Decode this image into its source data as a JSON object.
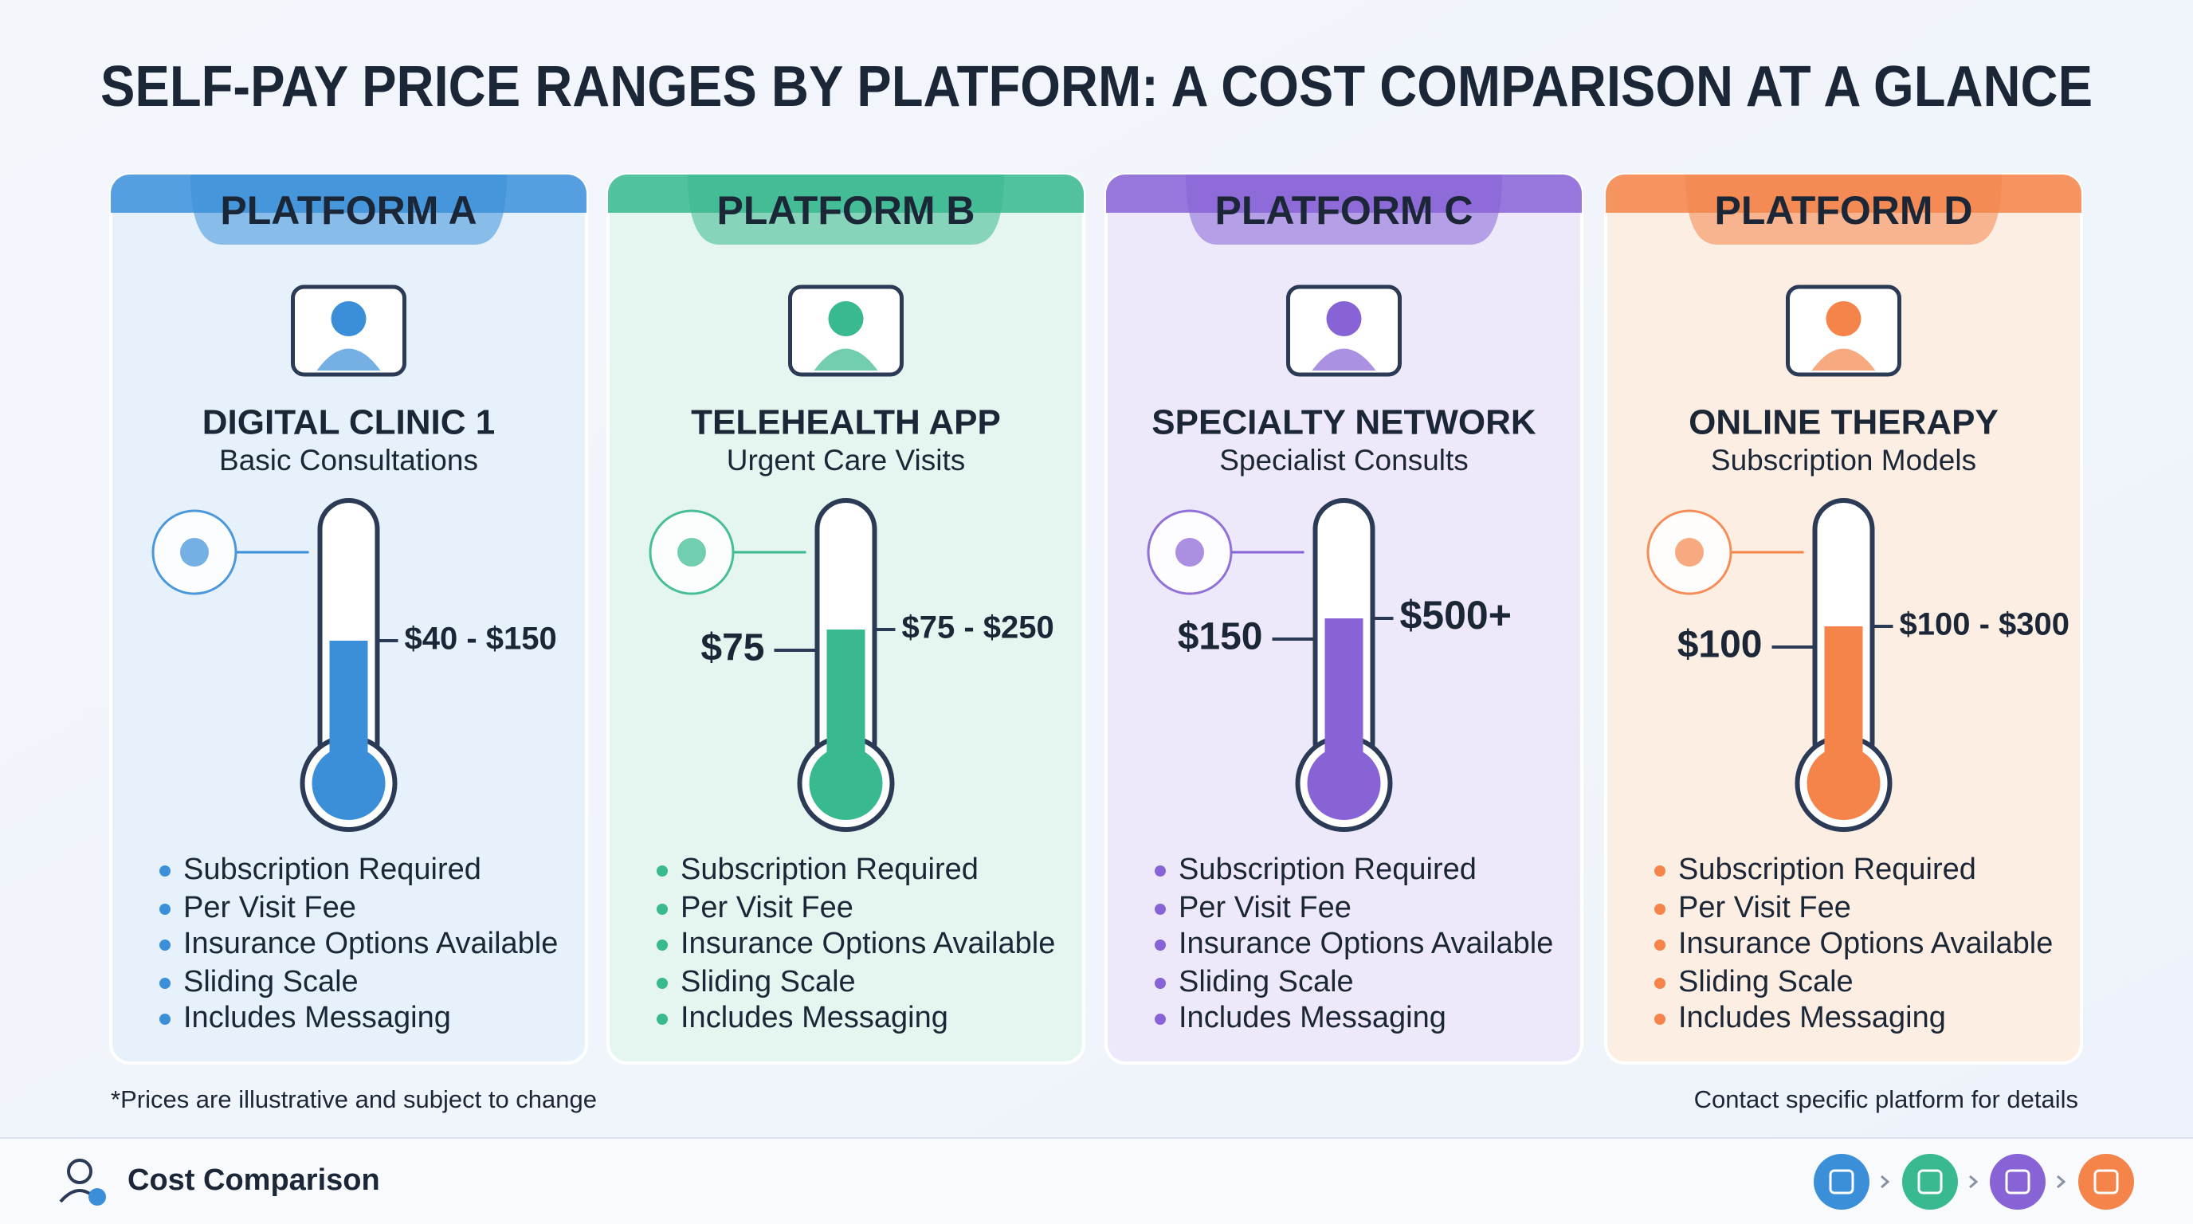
{
  "header": {
    "title": "SELF-PAY PRICE RANGES BY PLATFORM: A COST COMPARISON AT A GLANCE"
  },
  "cards": [
    {
      "platform": "PLATFORM A",
      "name": "DIGITAL CLINIC 1",
      "subtitle": "Basic Consultations",
      "price_range": "$40 - $150",
      "color": "#3b8fd9",
      "background": "#e6f1fc",
      "features": [
        "Subscription Required",
        "Per Visit Fee",
        "Insurance Options Available",
        "Sliding Scale",
        "Includes Messaging"
      ]
    },
    {
      "platform": "PLATFORM B",
      "name": "TELEHEALTH APP",
      "subtitle": "Urgent Care Visits",
      "price_low": "$75",
      "price_range": "$75 - $250",
      "color": "#38b98f",
      "background": "#e5f5ef",
      "features": [
        "Subscription Required",
        "Per Visit Fee",
        "Insurance Options Available",
        "Sliding Scale",
        "Includes Messaging"
      ]
    },
    {
      "platform": "PLATFORM C",
      "name": "SPECIALTY NETWORK",
      "subtitle": "Specialist Consults",
      "price_low": "$150",
      "price_range": "$500+",
      "color": "#8763d6",
      "background": "#eee9fa",
      "features": [
        "Subscription Required",
        "Per Visit Fee",
        "Insurance Options Available",
        "Sliding Scale",
        "Includes Messaging"
      ]
    },
    {
      "platform": "PLATFORM D",
      "name": "ONLINE THERAPY",
      "subtitle": "Subscription Models",
      "price_low": "$100",
      "price_range": "$100 - $300",
      "color": "#f4844a",
      "background": "#fdeee3",
      "features": [
        "Subscription Required",
        "Per Visit Fee",
        "Insurance Options Available",
        "Sliding Scale",
        "Includes Messaging"
      ]
    }
  ],
  "notes": {
    "left": "*Prices are illustrative and subject to change",
    "right": "Contact specific platform for details"
  },
  "footer": {
    "title": "Cost Comparison"
  }
}
